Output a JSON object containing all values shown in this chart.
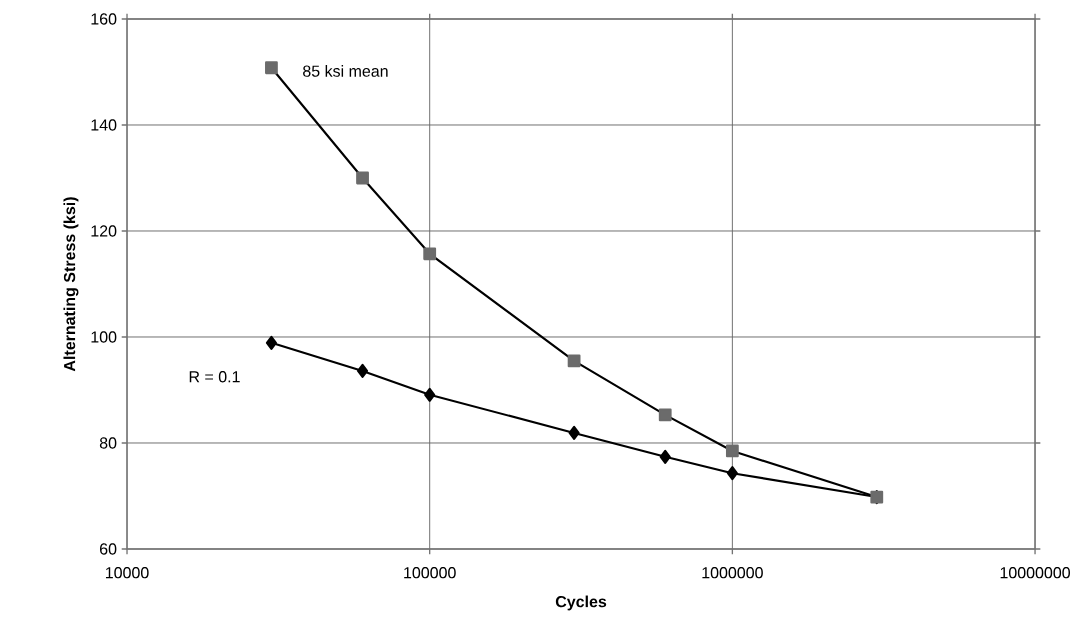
{
  "chart_data": {
    "type": "line",
    "xlabel": "Cycles",
    "ylabel": "Alternating Stress (ksi)",
    "log": "x",
    "grid": true,
    "line_style": "solid",
    "xlim": [
      10000,
      10000000
    ],
    "xticks": [
      10000,
      100000,
      1000000,
      10000000
    ],
    "ylim": [
      60,
      160
    ],
    "yticks": [
      60,
      80,
      100,
      120,
      140,
      160
    ],
    "series": [
      {
        "name": "85 ksi mean",
        "color": "#6b6b6b",
        "marker": "square",
        "x": [
          30000,
          60000,
          100000,
          300000,
          600000,
          1000000,
          3000000
        ],
        "values": [
          150.8,
          130.0,
          115.7,
          95.5,
          85.3,
          78.5,
          69.8
        ]
      },
      {
        "name": "R = 0.1",
        "color": "#000000",
        "marker": "diamond",
        "x": [
          30000,
          60000,
          100000,
          300000,
          600000,
          1000000,
          3000000
        ],
        "values": [
          98.9,
          93.6,
          89.1,
          81.9,
          77.4,
          74.3,
          69.8
        ]
      }
    ]
  }
}
